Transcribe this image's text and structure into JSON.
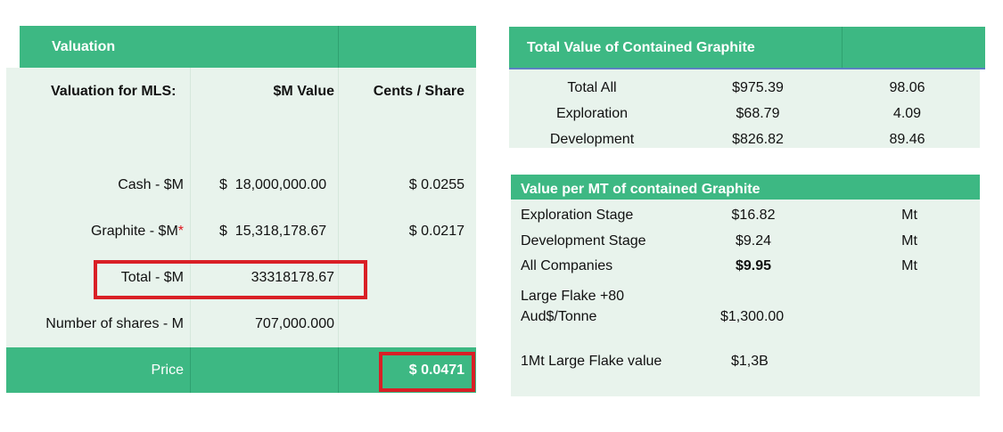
{
  "valuation": {
    "header": "Valuation",
    "col_label": "Valuation for MLS:",
    "col_value": "$M Value",
    "col_cents": "Cents / Share",
    "rows": [
      {
        "label": "Cash - $M",
        "value": "$  18,000,000.00",
        "cents": "$ 0.0255"
      },
      {
        "label": "Graphite - $M",
        "star": "*",
        "value": "$  15,318,178.67",
        "cents": "$ 0.0217"
      },
      {
        "label": "Total - $M",
        "value": "33318178.67",
        "cents": ""
      },
      {
        "label": "Number of shares - M",
        "value": "707,000.000",
        "cents": ""
      }
    ],
    "price_label": "Price",
    "price_value": "$ 0.0471"
  },
  "contained": {
    "header": "Total Value of Contained Graphite",
    "rows": [
      {
        "label": "Total All",
        "value": "$975.39",
        "cents": "98.06"
      },
      {
        "label": "Exploration",
        "value": "$68.79",
        "cents": "4.09"
      },
      {
        "label": "Development",
        "value": "$826.82",
        "cents": "89.46"
      }
    ]
  },
  "per_mt": {
    "header": "Value per MT of contained Graphite",
    "rows": [
      {
        "label": "Exploration Stage",
        "value": "$16.82",
        "unit": "Mt"
      },
      {
        "label": "Development Stage",
        "value": "$9.24",
        "unit": "Mt"
      },
      {
        "label": "All Companies",
        "value": "$9.95",
        "unit": "Mt"
      }
    ],
    "flake_label_1": "Large Flake +80",
    "flake_label_2": "Aud$/Tonne",
    "flake_value": "$1,300.00",
    "mt_label": "1Mt Large Flake value",
    "mt_value": "$1,3B"
  }
}
